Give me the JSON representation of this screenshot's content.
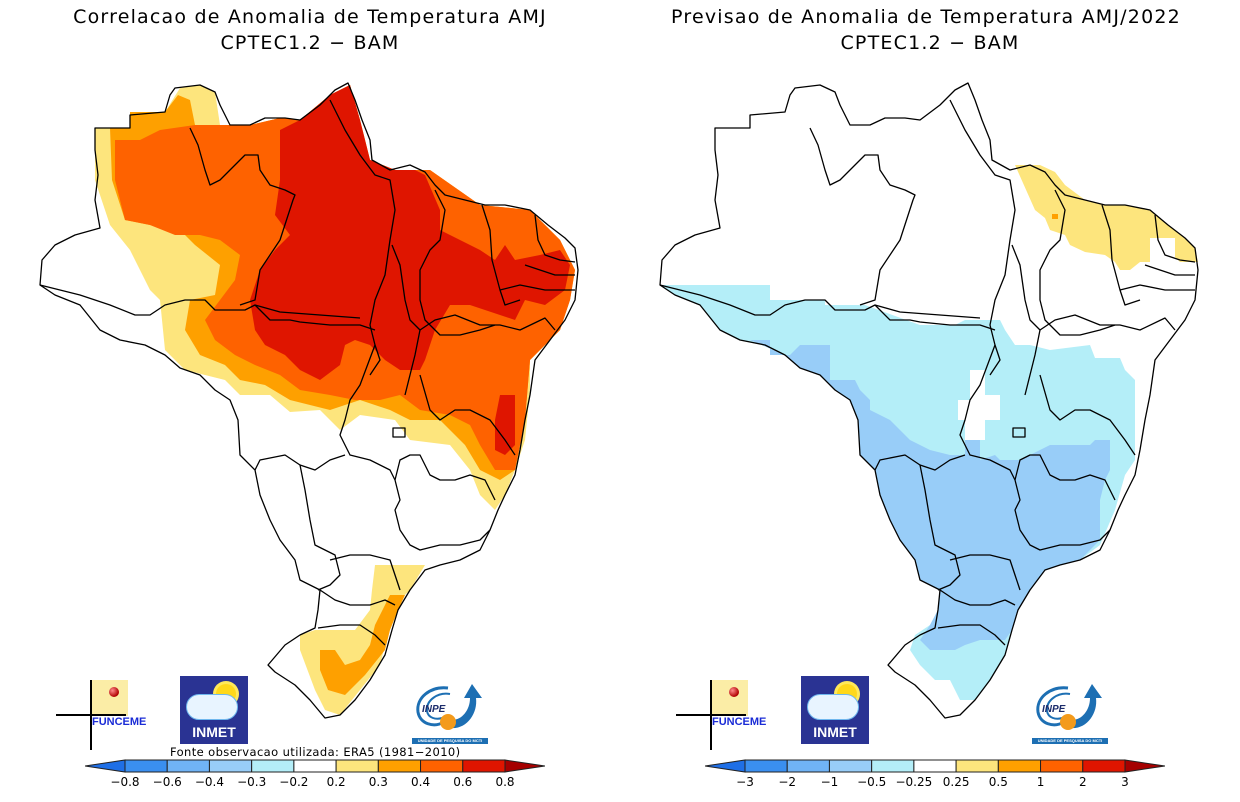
{
  "panels": [
    {
      "id": "correlation",
      "title": "Correlacao de Anomalia de Temperatura AMJ",
      "subtitle": "CPTEC1.2 − BAM",
      "source_note": "Fonte observacao utilizada: ERA5 (1981−2010)",
      "colorbar": {
        "labels": [
          "−0.8",
          "−0.6",
          "−0.4",
          "−0.3",
          "−0.2",
          "0.2",
          "0.3",
          "0.4",
          "0.6",
          "0.8"
        ],
        "colors": [
          "#1f6fe6",
          "#3a8ff0",
          "#70b3f5",
          "#98cdf8",
          "#b4eef8",
          "#ffffff",
          "#fde57d",
          "#fea000",
          "#fe6200",
          "#df1500",
          "#a50000"
        ]
      },
      "logos": {
        "funceme": "FUNCEME",
        "inmet": "INMET",
        "inpe": "INPE",
        "inpe_caption": "UNIDADE DE PESQUISA DO MCTI"
      }
    },
    {
      "id": "forecast",
      "title": "Previsao de Anomalia de Temperatura AMJ/2022",
      "subtitle": "CPTEC1.2 − BAM",
      "source_note": "",
      "colorbar": {
        "labels": [
          "−3",
          "−2",
          "−1",
          "−0.5",
          "−0.25",
          "0.25",
          "0.5",
          "1",
          "2",
          "3"
        ],
        "colors": [
          "#1f6fe6",
          "#3a8ff0",
          "#70b3f5",
          "#98cdf8",
          "#b4eef8",
          "#ffffff",
          "#fde57d",
          "#fea000",
          "#fe6200",
          "#df1500",
          "#a50000"
        ]
      },
      "logos": {
        "funceme": "FUNCEME",
        "inmet": "INMET",
        "inpe": "INPE",
        "inpe_caption": "UNIDADE DE PESQUISA DO MCTI"
      }
    }
  ],
  "map_regions": {
    "correlation": [
      {
        "category": "0.2 to 0.3",
        "color": "#fde57d"
      },
      {
        "category": "0.3 to 0.4",
        "color": "#fea000"
      },
      {
        "category": "0.4 to 0.6",
        "color": "#fe6200"
      },
      {
        "category": "0.6 to 0.8",
        "color": "#df1500"
      }
    ],
    "forecast": [
      {
        "category": "-0.5 to -0.25",
        "color": "#b4eef8"
      },
      {
        "category": "-1 to -0.5",
        "color": "#98cdf8"
      },
      {
        "category": "0.25 to 0.5",
        "color": "#fde57d"
      },
      {
        "category": "0.5 to 1",
        "color": "#fea000"
      }
    ]
  }
}
